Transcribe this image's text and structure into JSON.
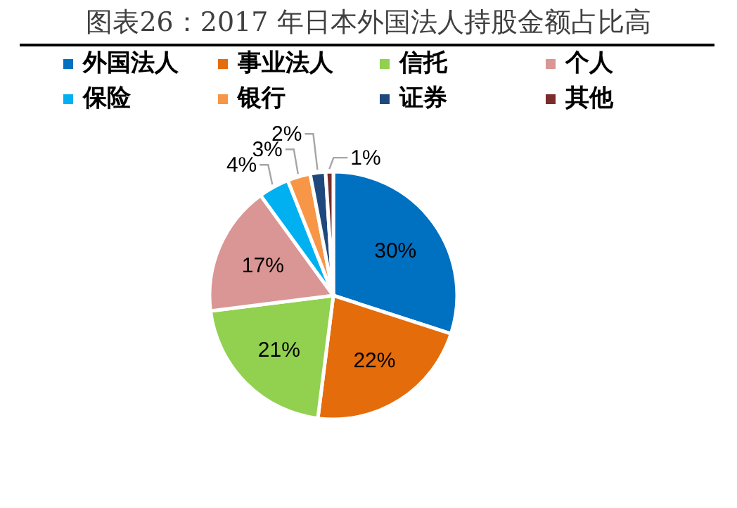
{
  "chart_data": {
    "type": "pie",
    "title": "图表26：2017 年日本外国法人持股金额占比高",
    "legend": "top",
    "categories": [
      "外国法人",
      "事业法人",
      "信托",
      "个人",
      "保险",
      "银行",
      "证券",
      "其他"
    ],
    "values": [
      30,
      22,
      21,
      17,
      4,
      3,
      2,
      1
    ],
    "colors": [
      "#0070c0",
      "#e46c0a",
      "#92d050",
      "#d99694",
      "#00b0f0",
      "#f79646",
      "#1f497d",
      "#7b2c2c"
    ],
    "value_labels": [
      "30%",
      "22%",
      "21%",
      "17%",
      "4%",
      "3%",
      "2%",
      "1%"
    ]
  }
}
